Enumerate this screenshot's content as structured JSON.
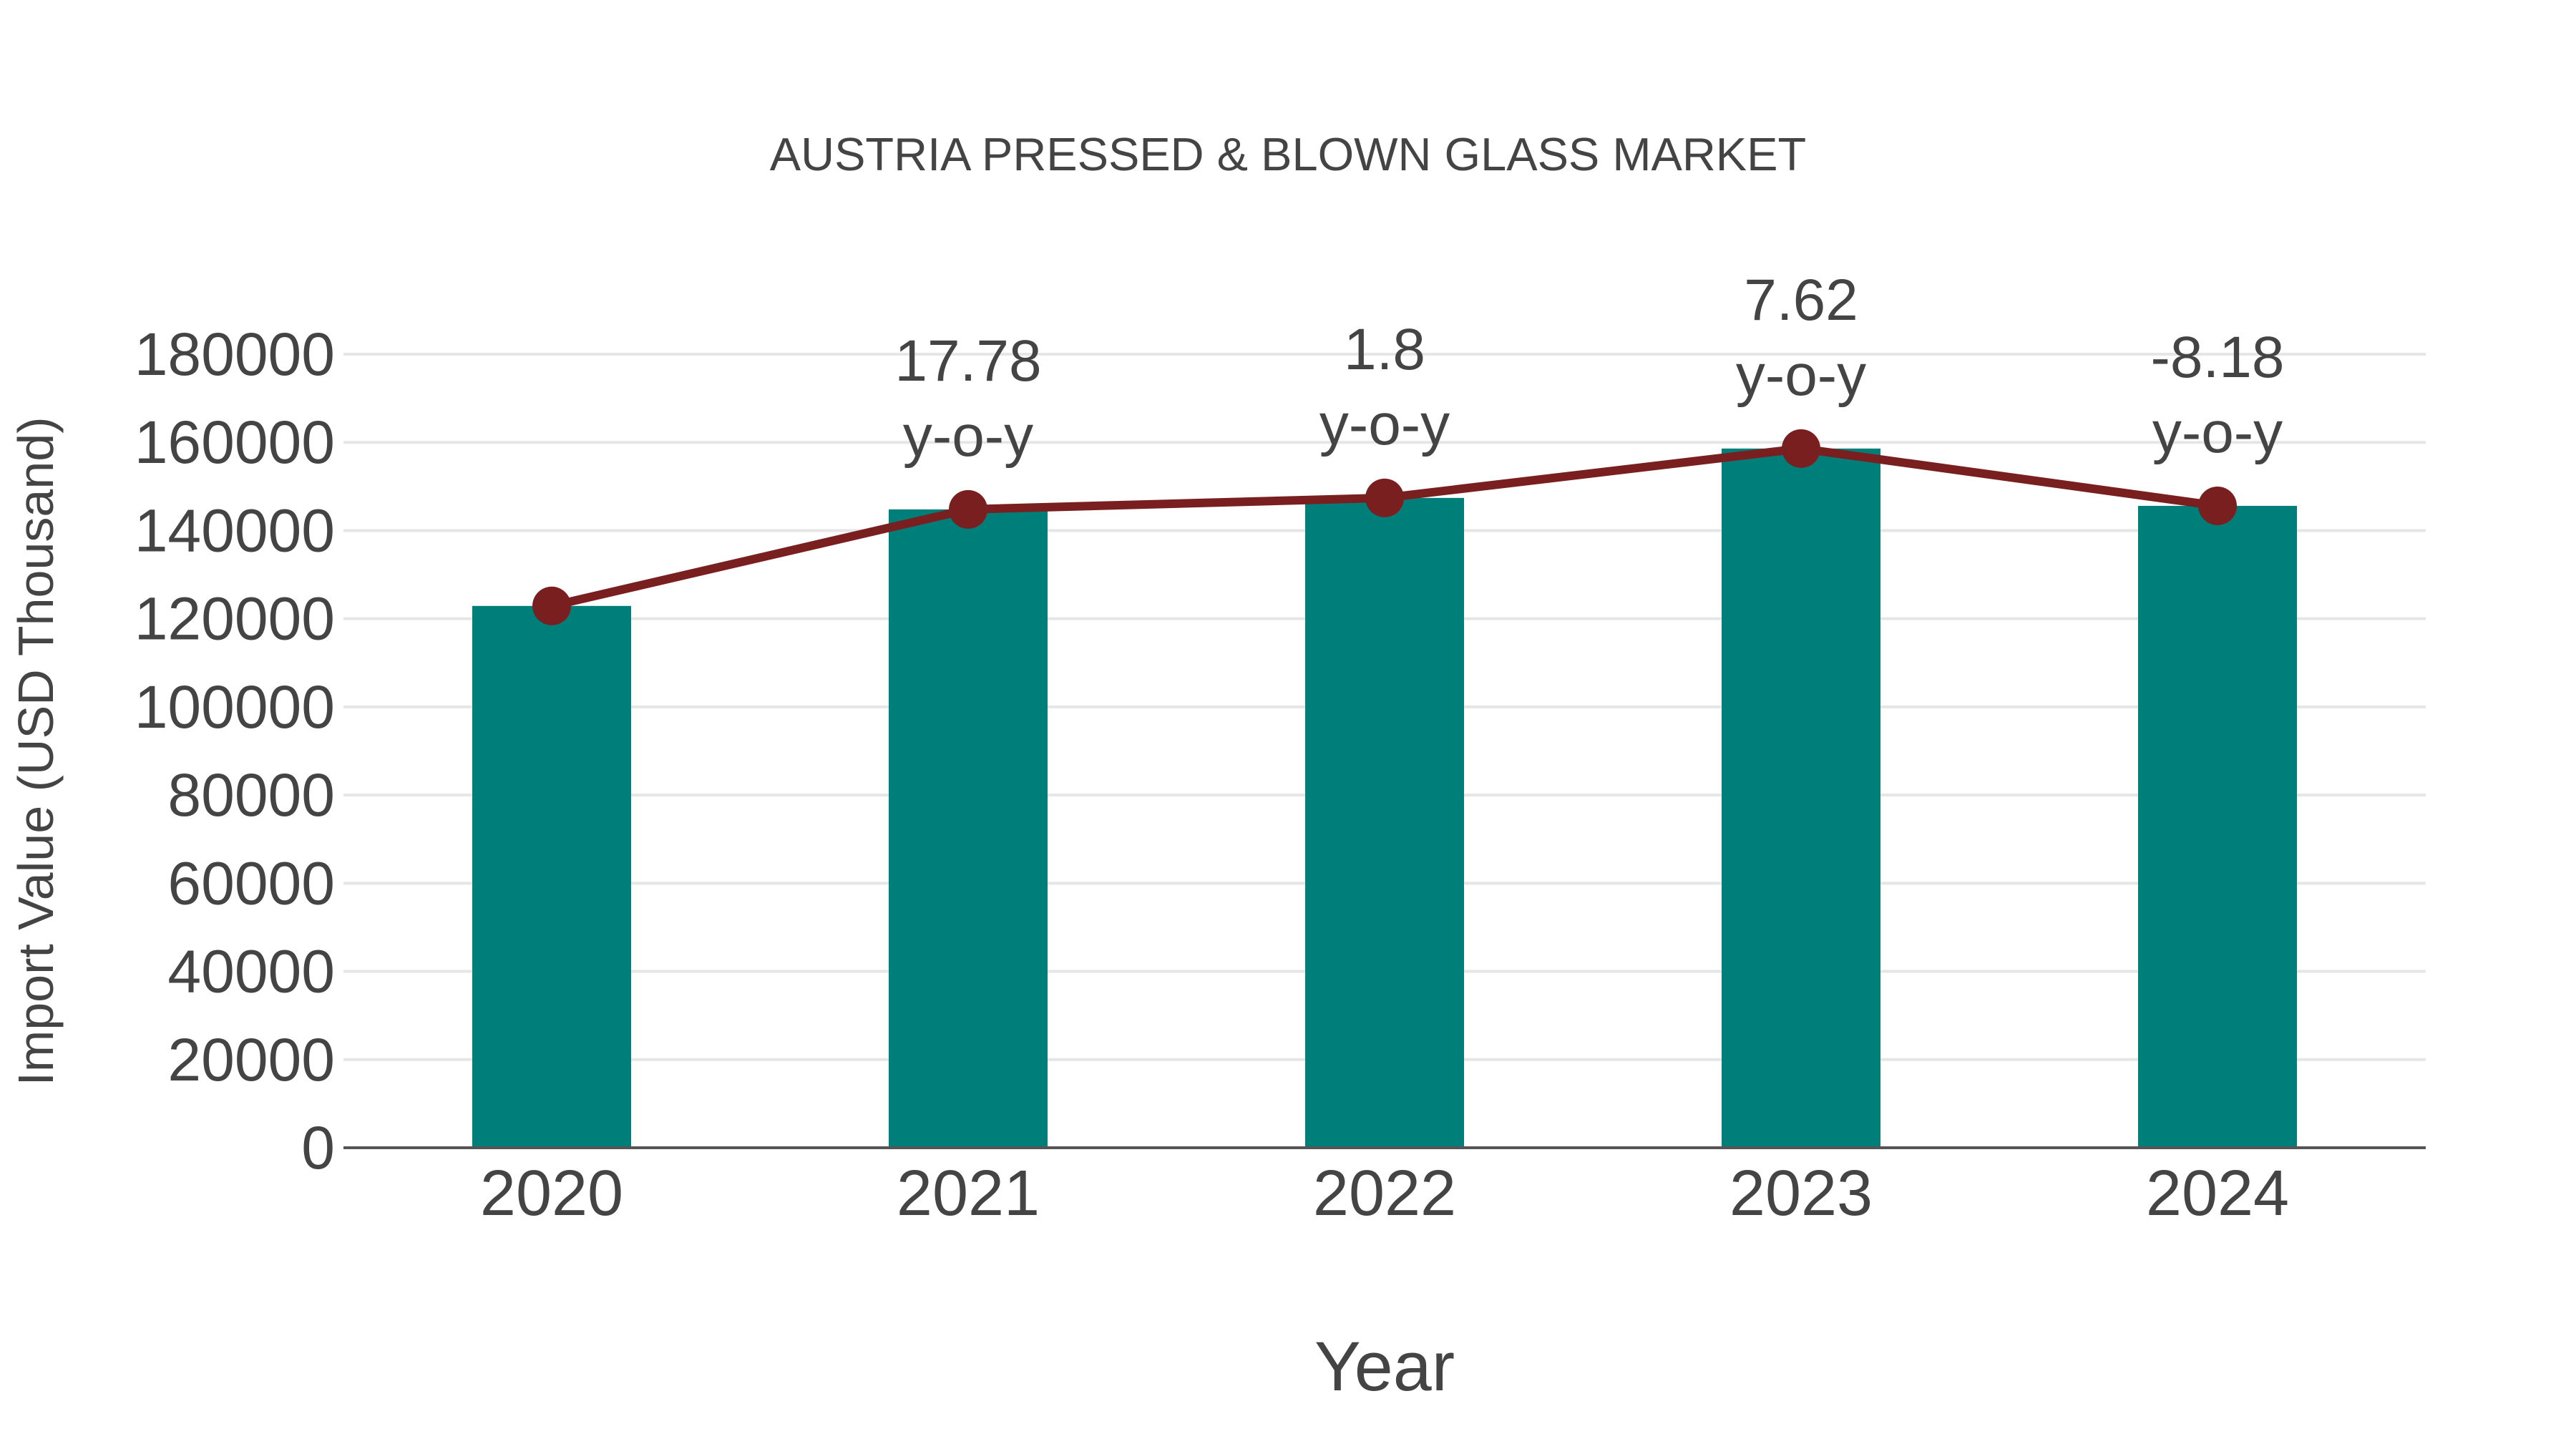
{
  "chart": {
    "title": "AUSTRIA PRESSED & BLOWN GLASS MARKET",
    "x_axis_title": "Year",
    "y_axis_title": "Import Value (USD Thousand)"
  },
  "colors": {
    "bar": "#007F7A",
    "line": "#7A1F1F",
    "text": "#444444",
    "grid": "#E6E6E6",
    "axis": "#555555"
  },
  "chart_data": {
    "type": "bar",
    "title": "AUSTRIA PRESSED & BLOWN GLASS MARKET",
    "xlabel": "Year",
    "ylabel": "Import Value (USD Thousand)",
    "categories": [
      "2020",
      "2021",
      "2022",
      "2023",
      "2024"
    ],
    "series": [
      {
        "name": "Import Value",
        "type": "bar",
        "values": [
          122900,
          144800,
          147400,
          158600,
          145600
        ]
      },
      {
        "name": "Import Value trend",
        "type": "line",
        "values": [
          122900,
          144800,
          147400,
          158600,
          145600
        ]
      }
    ],
    "annotations": [
      {
        "x": "2021",
        "text": "17.78",
        "sub": "y-o-y"
      },
      {
        "x": "2022",
        "text": "1.8",
        "sub": "y-o-y"
      },
      {
        "x": "2023",
        "text": "7.62",
        "sub": "y-o-y"
      },
      {
        "x": "2024",
        "text": "-8.18",
        "sub": "y-o-y"
      }
    ],
    "yticks": [
      0,
      20000,
      40000,
      60000,
      80000,
      100000,
      120000,
      140000,
      160000,
      180000
    ],
    "ylim": [
      0,
      180000
    ],
    "grid": true,
    "legend": "none"
  }
}
